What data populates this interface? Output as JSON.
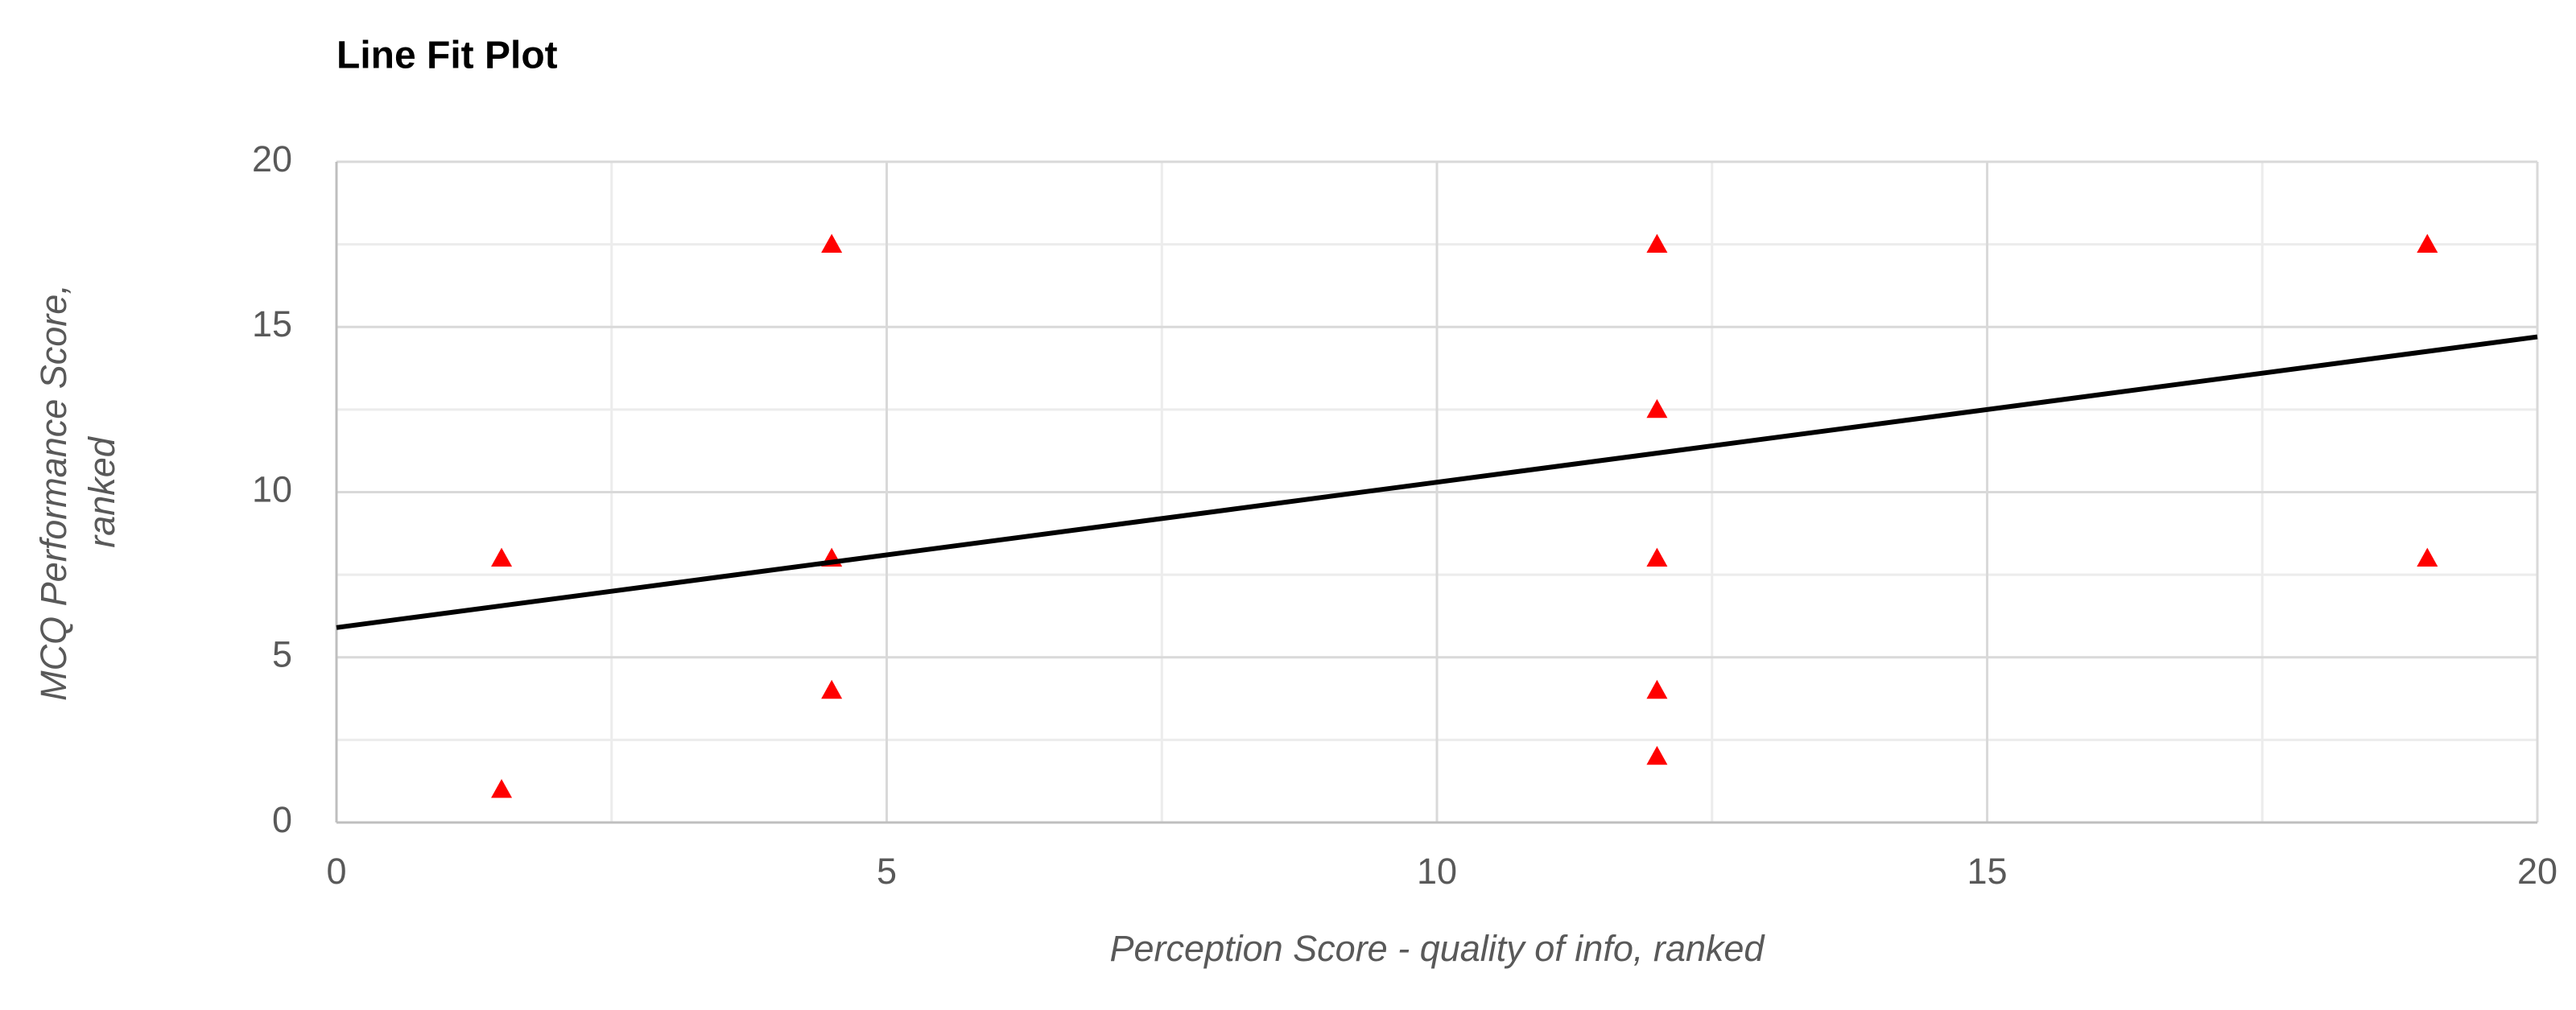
{
  "chart_data": {
    "type": "scatter",
    "title": "Line Fit Plot",
    "x_label": "Perception Score - quality of info, ranked",
    "y_label": [
      "MCQ Performance Score,",
      "ranked"
    ],
    "series": [
      {
        "type": "scatter",
        "color": "#ff0000",
        "x": [
          1.5,
          1.5,
          4.5,
          4.5,
          4.5,
          12,
          12,
          12,
          12,
          12,
          19,
          19
        ],
        "values": [
          8,
          1,
          17.5,
          8,
          4,
          17.5,
          12.5,
          8,
          4,
          2,
          17.5,
          8
        ]
      },
      {
        "type": "line",
        "color": "#000000",
        "x": [
          0,
          20
        ],
        "values": [
          5.9,
          14.7
        ]
      }
    ],
    "xlim": [
      0,
      20
    ],
    "xticks": [
      0,
      5,
      10,
      15,
      20
    ],
    "ylim": [
      0,
      20
    ],
    "yticks": [
      0,
      5,
      10,
      15,
      20
    ],
    "grid": true,
    "minor_grid": true
  }
}
